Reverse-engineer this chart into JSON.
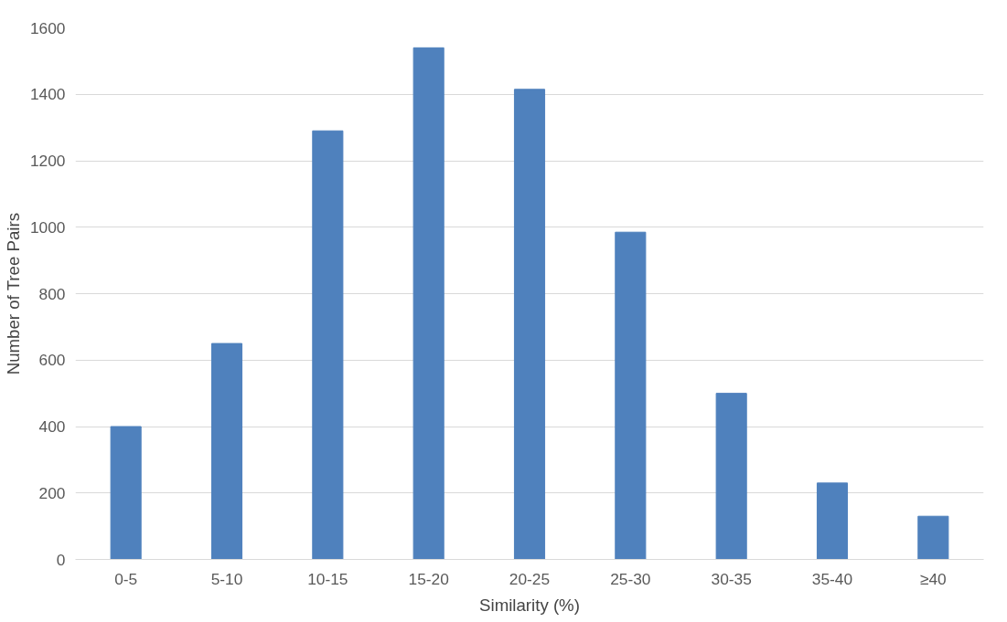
{
  "chart_data": {
    "type": "bar",
    "xlabel": "Similarity (%)",
    "ylabel": "Number of Tree Pairs",
    "categories": [
      "0-5",
      "5-10",
      "10-15",
      "15-20",
      "20-25",
      "25-30",
      "30-35",
      "35-40",
      "≥40"
    ],
    "values": [
      400,
      650,
      1290,
      1540,
      1415,
      985,
      500,
      230,
      130
    ],
    "color": "#4f81bd",
    "ylim": [
      0,
      1600
    ],
    "yticks": [
      0,
      200,
      400,
      600,
      800,
      1000,
      1200,
      1400,
      1600
    ],
    "grid": "y"
  }
}
